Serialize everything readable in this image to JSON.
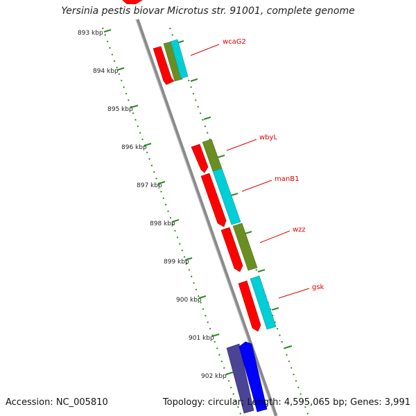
{
  "title": "Yersinia pestis biovar Microtus str. 91001, complete genome",
  "footer": {
    "accession": "Accession: NC_005810",
    "summary": "Topology: circular; Length: 4,595,065 bp; Genes: 3,991"
  },
  "kbp_ticks": [
    "893 kbp",
    "894 kbp",
    "895 kbp",
    "896 kbp",
    "897 kbp",
    "898 kbp",
    "899 kbp",
    "900 kbp",
    "901 kbp",
    "902 kbp"
  ],
  "gene_labels": [
    "wcaG2",
    "wbyL",
    "manB1",
    "wzz",
    "gsk"
  ],
  "colors": {
    "backbone": "#8a8a8a",
    "cds_forward": "#ff0000",
    "olive": "#6b8e23",
    "cyan": "#00cfd6",
    "navy": "#4b4494",
    "blue": "#0000ff",
    "ticks": "#2a8a1f",
    "label_lines": "#e00000"
  }
}
